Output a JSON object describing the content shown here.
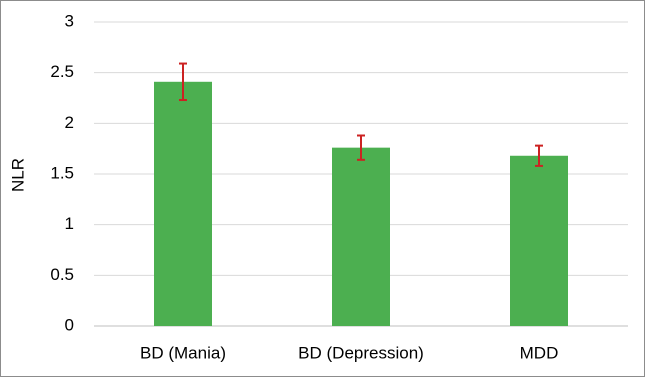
{
  "chart_data": {
    "type": "bar",
    "categories": [
      "BD (Mania)",
      "BD (Depression)",
      "MDD"
    ],
    "values": [
      2.41,
      1.76,
      1.68
    ],
    "error_low": [
      2.23,
      1.64,
      1.58
    ],
    "error_high": [
      2.59,
      1.88,
      1.78
    ],
    "title": "",
    "xlabel": "",
    "ylabel": "NLR",
    "ylim": [
      0,
      3
    ],
    "yticks": [
      0,
      0.5,
      1,
      1.5,
      2,
      2.5,
      3
    ],
    "ytick_labels": [
      "0",
      "0.5",
      "1",
      "1.5",
      "2",
      "2.5",
      "3"
    ],
    "grid": true,
    "legend": "none",
    "colors": {
      "bar": "#4caf50",
      "error_bar": "#cc2222",
      "grid": "#d9d9d9",
      "axis": "#bfbfbf"
    }
  }
}
